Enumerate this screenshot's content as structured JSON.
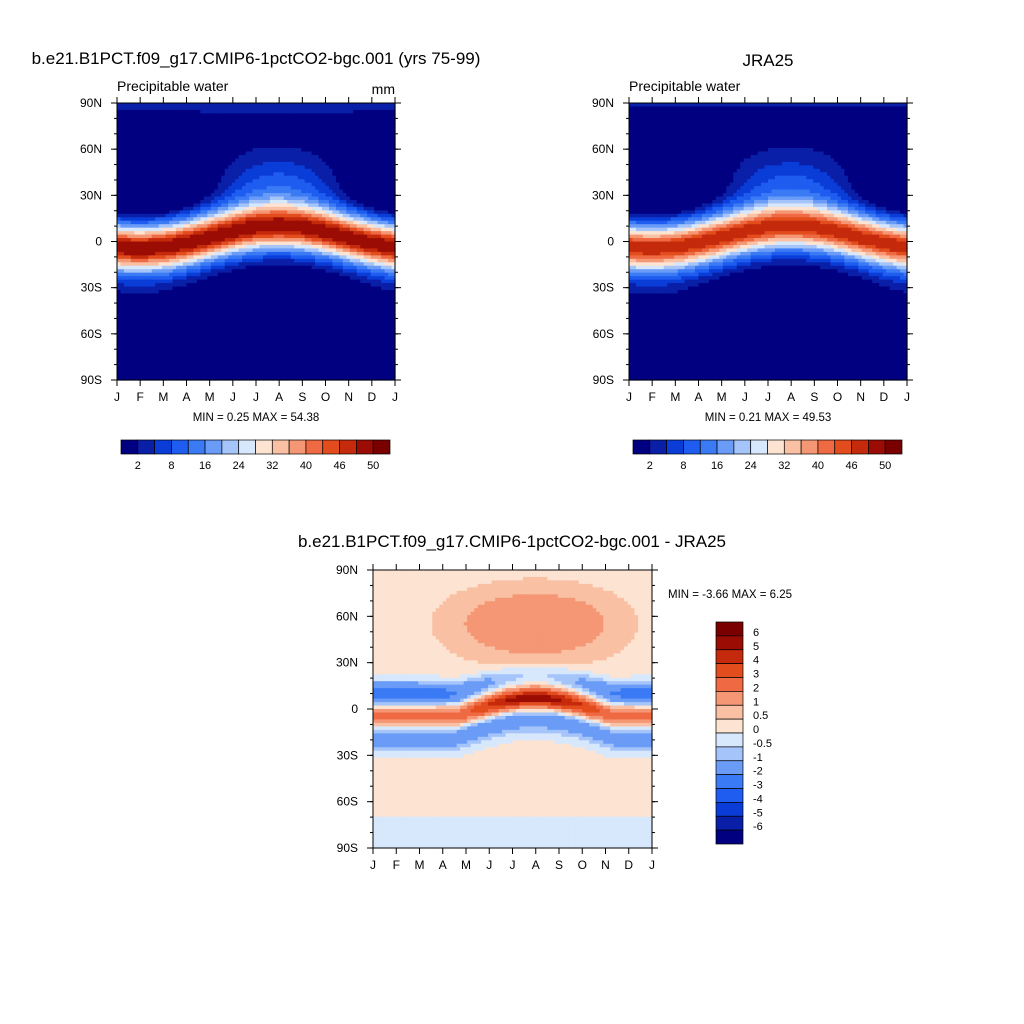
{
  "figure": {
    "colors": {
      "background": "#ffffff",
      "axes": "#000000"
    }
  },
  "chart_data": [
    {
      "type": "heatmap",
      "name": "model",
      "title": "b.e21.B1PCT.f09_g17.CMIP6-1pctCO2-bgc.001 (yrs 75-99)",
      "subtitle": "Precipitable water",
      "units": "mm",
      "stats_text": "MIN =   0.25 MAX =   54.38",
      "stats": {
        "min": 0.25,
        "max": 54.38
      },
      "x_ticks": [
        "J",
        "F",
        "M",
        "A",
        "M",
        "J",
        "J",
        "A",
        "S",
        "O",
        "N",
        "D",
        "J"
      ],
      "y_ticks": [
        "90N",
        "60N",
        "30N",
        "0",
        "30S",
        "60S",
        "90S"
      ],
      "ylim": [
        -90,
        90
      ],
      "field": {
        "peak": 54.4,
        "equator_amp": 51,
        "width": 15,
        "wide_width": 36,
        "wide_amp": 9,
        "nh_season": 13,
        "sh_season": 2.5,
        "pole_n": 3,
        "pole_s": 0.5
      },
      "levels": [
        2,
        5,
        8,
        12,
        16,
        20,
        24,
        28,
        32,
        36,
        40,
        43,
        46,
        50
      ],
      "colorbar": {
        "orientation": "horizontal",
        "labels": [
          "2",
          "8",
          "16",
          "24",
          "32",
          "40",
          "46",
          "50"
        ]
      }
    },
    {
      "type": "heatmap",
      "name": "obs",
      "title": "JRA25",
      "subtitle": "Precipitable water",
      "stats_text": "MIN =   0.21 MAX =   49.53",
      "stats": {
        "min": 0.21,
        "max": 49.53
      },
      "x_ticks": [
        "J",
        "F",
        "M",
        "A",
        "M",
        "J",
        "J",
        "A",
        "S",
        "O",
        "N",
        "D",
        "J"
      ],
      "y_ticks": [
        "90N",
        "60N",
        "30N",
        "0",
        "30S",
        "60S",
        "90S"
      ],
      "ylim": [
        -90,
        90
      ],
      "field": {
        "peak": 49.5,
        "equator_amp": 46,
        "width": 15,
        "wide_width": 36,
        "wide_amp": 8,
        "nh_season": 12,
        "sh_season": 2.5,
        "pole_n": 2.5,
        "pole_s": 0.4
      },
      "levels": [
        2,
        5,
        8,
        12,
        16,
        20,
        24,
        28,
        32,
        36,
        40,
        43,
        46,
        50
      ],
      "colorbar": {
        "orientation": "horizontal",
        "labels": [
          "2",
          "8",
          "16",
          "24",
          "32",
          "40",
          "46",
          "50"
        ]
      }
    },
    {
      "type": "heatmap",
      "name": "diff",
      "title": "b.e21.B1PCT.f09_g17.CMIP6-1pctCO2-bgc.001 - JRA25",
      "stats_text": "MIN =  -3.66 MAX =   6.25",
      "stats": {
        "min": -3.66,
        "max": 6.25
      },
      "x_ticks": [
        "J",
        "F",
        "M",
        "A",
        "M",
        "J",
        "J",
        "A",
        "S",
        "O",
        "N",
        "D",
        "J"
      ],
      "y_ticks": [
        "90N",
        "60N",
        "30N",
        "0",
        "30S",
        "60S",
        "90S"
      ],
      "ylim": [
        -90,
        90
      ],
      "levels": [
        -6,
        -5,
        -4,
        -3,
        -2,
        -1,
        -0.5,
        0,
        0.5,
        1,
        2,
        3,
        4,
        5,
        6
      ],
      "colorbar": {
        "orientation": "vertical",
        "labels": [
          "6",
          "5",
          "4",
          "3",
          "2",
          "1",
          "0.5",
          "0",
          "-0.5",
          "-1",
          "-2",
          "-3",
          "-4",
          "-5",
          "-6"
        ]
      }
    }
  ],
  "palettes": {
    "abs": [
      "#000080",
      "#0a1fa8",
      "#0a3dd8",
      "#1f5df0",
      "#3b7af5",
      "#6a9cf7",
      "#a4c4fa",
      "#d7e7fc",
      "#fde3d2",
      "#f9c0a3",
      "#f59774",
      "#ef6a43",
      "#e34c1d",
      "#c42a0b",
      "#9b0d04",
      "#7a0000"
    ],
    "diff": [
      "#000080",
      "#0a1fa8",
      "#0a3dd8",
      "#1f5df0",
      "#3b7af5",
      "#6a9cf7",
      "#a4c4fa",
      "#d7e7fc",
      "#fde3d2",
      "#f9c0a3",
      "#f59774",
      "#ef6a43",
      "#e34c1d",
      "#c42a0b",
      "#9b0d04",
      "#7a0000"
    ]
  }
}
